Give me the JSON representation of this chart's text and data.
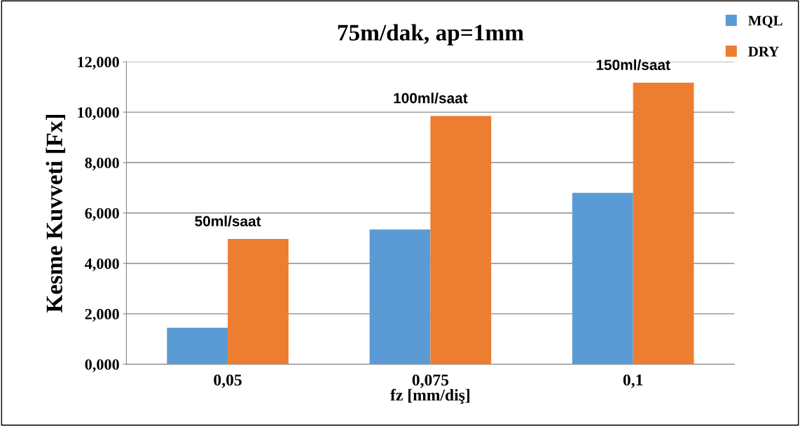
{
  "chart_data": {
    "type": "bar",
    "title": "75m/dak, ap=1mm",
    "xlabel": "fz [mm/diş]",
    "ylabel": "Kesme Kuvveti [Fx]",
    "categories": [
      "0,05",
      "0,075",
      "0,1"
    ],
    "series": [
      {
        "name": "MQL",
        "color": "#5b9bd5",
        "values": [
          1.45,
          5.35,
          6.8
        ]
      },
      {
        "name": "DRY",
        "color": "#ed7d31",
        "values": [
          4.97,
          9.85,
          11.17
        ]
      }
    ],
    "ylim": [
      0,
      12
    ],
    "yticks": [
      {
        "value": 0,
        "label": "0,000"
      },
      {
        "value": 2,
        "label": "2,000"
      },
      {
        "value": 4,
        "label": "4,000"
      },
      {
        "value": 6,
        "label": "6,000"
      },
      {
        "value": 8,
        "label": "8,000"
      },
      {
        "value": 10,
        "label": "10,000"
      },
      {
        "value": 12,
        "label": "12,000"
      }
    ],
    "grid": "y",
    "legend": "top right",
    "annotations": [
      "50ml/saat",
      "100ml/saat",
      "150ml/saat"
    ]
  }
}
